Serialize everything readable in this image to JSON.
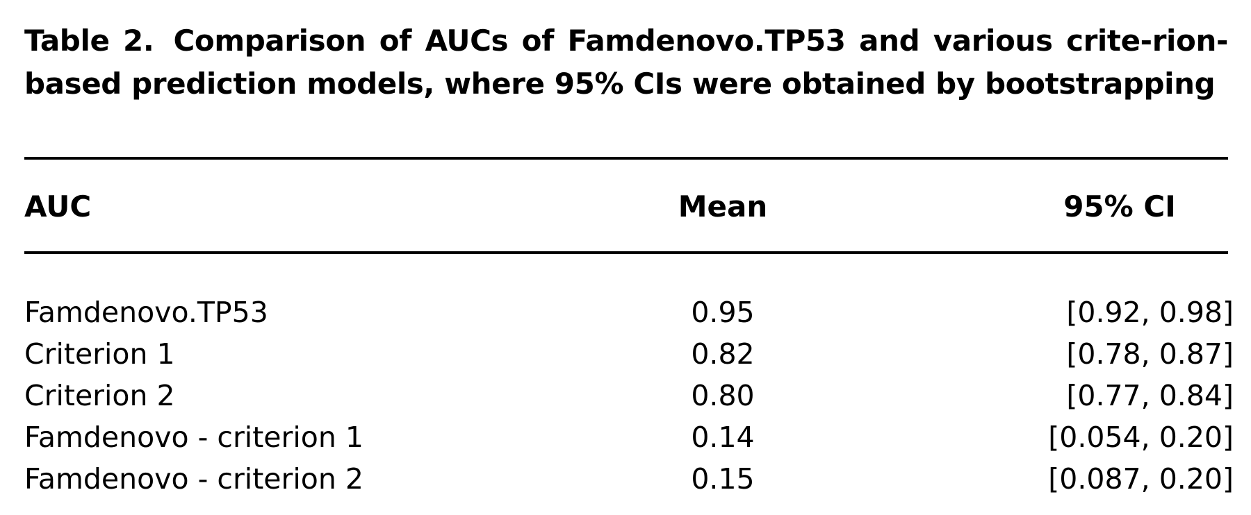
{
  "caption": {
    "label": "Table 2.",
    "text": "Comparison of AUCs of Famdenovo.TP53 and various crite-rion-based prediction models, where 95% CIs were obtained by bootstrapping"
  },
  "table": {
    "headers": {
      "auc": "AUC",
      "mean": "Mean",
      "ci": "95% CI"
    },
    "rows": [
      {
        "name": "Famdenovo.TP53",
        "mean": "0.95",
        "ci": "[0.92, 0.98]"
      },
      {
        "name": "Criterion 1",
        "mean": "0.82",
        "ci": "[0.78, 0.87]"
      },
      {
        "name": "Criterion 2",
        "mean": "0.80",
        "ci": "[0.77, 0.84]"
      },
      {
        "name": "Famdenovo - criterion 1",
        "mean": "0.14",
        "ci": "[0.054, 0.20]"
      },
      {
        "name": "Famdenovo - criterion 2",
        "mean": "0.15",
        "ci": "[0.087, 0.20]"
      }
    ]
  }
}
